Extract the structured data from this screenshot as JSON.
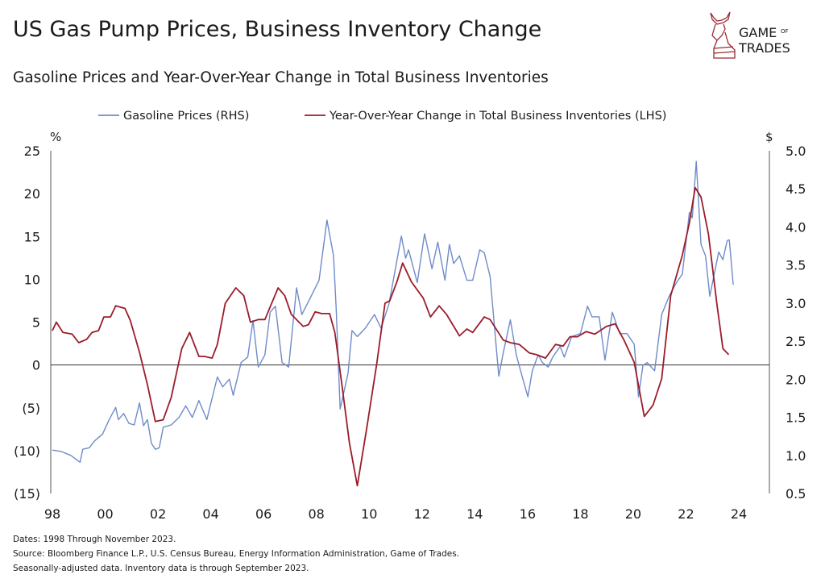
{
  "title": "US Gas Pump Prices, Business Inventory Change",
  "subtitle": "Gasoline Prices and Year-Over-Year Change in Total Business Inventories",
  "logo": {
    "text": "GAME OF TRADES",
    "color": "#9b2a33"
  },
  "footer": [
    "Dates: 1998 Through November 2023.",
    "Source: Bloomberg Finance L.P., U.S. Census Bureau, Energy Information Administration, Game of Trades.",
    "Seasonally-adjusted data. Inventory data is through September 2023."
  ],
  "chart_data": {
    "type": "line",
    "title": "Gasoline Prices and Year-Over-Year Change in Total Business Inventories",
    "legend_position": "top",
    "grid": false,
    "x_ticks": [
      "98",
      "00",
      "02",
      "04",
      "06",
      "08",
      "10",
      "12",
      "14",
      "16",
      "18",
      "20",
      "22",
      "24"
    ],
    "xlim": [
      1998,
      2024
    ],
    "left_axis": {
      "unit": "%",
      "ylim": [
        -15,
        25
      ],
      "ticks": [
        25,
        20,
        15,
        10,
        5,
        0,
        -5,
        -10,
        -15
      ],
      "tick_labels": [
        "25",
        "20",
        "15",
        "10",
        "5",
        "0",
        "(5)",
        "(10)",
        "(15)"
      ]
    },
    "right_axis": {
      "unit": "$",
      "ylim": [
        0.5,
        5.0
      ],
      "ticks": [
        5.0,
        4.5,
        4.0,
        3.5,
        3.0,
        2.5,
        2.0,
        1.5,
        1.0,
        0.5
      ],
      "tick_labels": [
        "5.0",
        "4.5",
        "4.0",
        "3.5",
        "3.0",
        "2.5",
        "2.0",
        "1.5",
        "1.0",
        "0.5"
      ]
    },
    "series": [
      {
        "name": "Gasoline Prices (RHS)",
        "axis": "right",
        "color": "#6f8bc9",
        "x": [
          1998.0,
          1998.35,
          1998.7,
          1999.05,
          1999.15,
          1999.4,
          1999.6,
          1999.9,
          2000.15,
          2000.4,
          2000.5,
          2000.7,
          2000.9,
          2001.1,
          2001.3,
          2001.45,
          2001.6,
          2001.75,
          2001.9,
          2002.05,
          2002.2,
          2002.5,
          2002.8,
          2003.05,
          2003.3,
          2003.55,
          2003.85,
          2004.25,
          2004.45,
          2004.7,
          2004.85,
          2005.15,
          2005.4,
          2005.6,
          2005.8,
          2006.05,
          2006.25,
          2006.45,
          2006.7,
          2006.95,
          2007.25,
          2007.45,
          2007.8,
          2008.1,
          2008.4,
          2008.65,
          2008.75,
          2008.9,
          2009.2,
          2009.35,
          2009.55,
          2009.85,
          2010.2,
          2010.45,
          2010.75,
          2011.22,
          2011.38,
          2011.49,
          2011.82,
          2012.1,
          2012.38,
          2012.6,
          2012.87,
          2013.04,
          2013.2,
          2013.42,
          2013.7,
          2013.92,
          2014.19,
          2014.36,
          2014.58,
          2014.91,
          2015.08,
          2015.35,
          2015.57,
          2015.79,
          2016.01,
          2016.18,
          2016.4,
          2016.56,
          2016.78,
          2016.95,
          2017.23,
          2017.39,
          2017.67,
          2018.0,
          2018.27,
          2018.44,
          2018.71,
          2018.93,
          2019.21,
          2019.49,
          2019.76,
          2020.04,
          2020.2,
          2020.37,
          2020.53,
          2020.81,
          2021.08,
          2021.36,
          2021.64,
          2021.86,
          2022.13,
          2022.24,
          2022.39,
          2022.57,
          2022.74,
          2022.9,
          2023.07,
          2023.24,
          2023.4,
          2023.56,
          2023.64,
          2023.79
        ],
        "y": [
          1.07,
          1.05,
          1.0,
          0.91,
          1.08,
          1.1,
          1.19,
          1.28,
          1.47,
          1.63,
          1.47,
          1.55,
          1.42,
          1.4,
          1.69,
          1.39,
          1.47,
          1.16,
          1.08,
          1.1,
          1.37,
          1.4,
          1.5,
          1.65,
          1.5,
          1.72,
          1.47,
          2.03,
          1.9,
          2.0,
          1.79,
          2.22,
          2.29,
          2.77,
          2.16,
          2.32,
          2.88,
          2.96,
          2.22,
          2.16,
          3.2,
          2.85,
          3.09,
          3.3,
          4.09,
          3.62,
          2.92,
          1.61,
          2.08,
          2.64,
          2.56,
          2.67,
          2.85,
          2.67,
          2.99,
          3.88,
          3.59,
          3.7,
          3.27,
          3.91,
          3.45,
          3.8,
          3.3,
          3.77,
          3.52,
          3.62,
          3.3,
          3.3,
          3.7,
          3.66,
          3.35,
          2.04,
          2.35,
          2.78,
          2.32,
          2.04,
          1.77,
          2.11,
          2.32,
          2.22,
          2.16,
          2.29,
          2.43,
          2.29,
          2.56,
          2.6,
          2.96,
          2.82,
          2.82,
          2.25,
          2.88,
          2.6,
          2.6,
          2.46,
          1.77,
          2.18,
          2.22,
          2.11,
          2.85,
          3.09,
          3.27,
          3.38,
          4.19,
          4.12,
          4.86,
          3.77,
          3.62,
          3.09,
          3.38,
          3.67,
          3.57,
          3.82,
          3.83,
          3.24
        ]
      },
      {
        "name": "Year-Over-Year Change in Total Business Inventories (LHS)",
        "axis": "left",
        "color": "#9b1c2a",
        "x": [
          1998.0,
          1998.15,
          1998.4,
          1998.75,
          1999.0,
          1999.3,
          1999.5,
          1999.75,
          1999.95,
          2000.2,
          2000.4,
          2000.75,
          2000.95,
          2001.3,
          2001.6,
          2001.9,
          2002.2,
          2002.5,
          2002.9,
          2003.2,
          2003.55,
          2003.75,
          2004.05,
          2004.25,
          2004.55,
          2004.95,
          2005.25,
          2005.5,
          2005.8,
          2006.05,
          2006.55,
          2006.8,
          2007.05,
          2007.5,
          2007.7,
          2007.95,
          2008.2,
          2008.5,
          2008.7,
          2008.95,
          2009.25,
          2009.55,
          2009.9,
          2010.28,
          2010.6,
          2010.78,
          2011.05,
          2011.27,
          2011.6,
          2012.05,
          2012.32,
          2012.65,
          2012.93,
          2013.42,
          2013.7,
          2013.92,
          2014.36,
          2014.58,
          2015.08,
          2015.35,
          2015.68,
          2016.07,
          2016.34,
          2016.68,
          2017.06,
          2017.34,
          2017.61,
          2017.89,
          2018.22,
          2018.55,
          2018.99,
          2019.32,
          2019.65,
          2020.04,
          2020.42,
          2020.75,
          2021.08,
          2021.42,
          2021.86,
          2022.13,
          2022.35,
          2022.57,
          2022.85,
          2023.18,
          2023.4,
          2023.62
        ],
        "y": [
          4.0,
          5.0,
          3.8,
          3.6,
          2.6,
          3.0,
          3.8,
          4.0,
          5.6,
          5.6,
          6.9,
          6.6,
          5.2,
          1.5,
          -2.3,
          -6.6,
          -6.4,
          -3.8,
          1.9,
          3.8,
          1.0,
          1.0,
          0.8,
          2.4,
          7.2,
          9.0,
          8.1,
          5.0,
          5.3,
          5.3,
          9.0,
          8.1,
          5.9,
          4.5,
          4.7,
          6.2,
          6.0,
          6.0,
          3.8,
          -1.9,
          -9.1,
          -14.1,
          -7.5,
          0.0,
          7.2,
          7.5,
          9.7,
          11.9,
          9.7,
          7.8,
          5.6,
          6.9,
          5.9,
          3.4,
          4.2,
          3.8,
          5.6,
          5.3,
          2.9,
          2.6,
          2.4,
          1.4,
          1.2,
          0.8,
          2.4,
          2.2,
          3.3,
          3.3,
          3.9,
          3.6,
          4.5,
          4.8,
          2.9,
          0.3,
          -6.0,
          -4.7,
          -1.6,
          8.1,
          12.8,
          16.6,
          20.7,
          19.6,
          15.3,
          6.9,
          1.9,
          1.2
        ]
      }
    ]
  }
}
